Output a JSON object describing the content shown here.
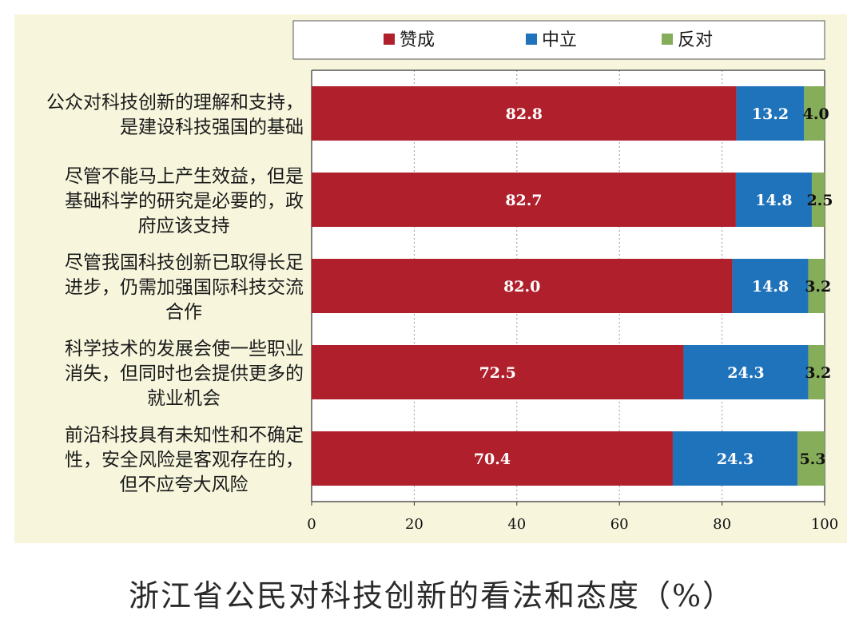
{
  "caption": "浙江省公民对科技创新的看法和态度（%）",
  "colors": {
    "panel_bg": "#f7f6dd",
    "plot_bg": "#ffffff"
  },
  "chart_data": {
    "type": "bar",
    "orientation": "horizontal",
    "stacked": true,
    "categories": [
      [
        "公众对科技创新的理解和支持，",
        "是建设科技强国的基础"
      ],
      [
        "尽管不能马上产生效益，但是",
        "基础科学的研究是必要的，政",
        "府应该支持"
      ],
      [
        "尽管我国科技创新已取得长足",
        "进步，仍需加强国际科技交流",
        "合作"
      ],
      [
        "科学技术的发展会使一些职业",
        "消失，但同时也会提供更多的",
        "就业机会"
      ],
      [
        "前沿科技具有未知性和不确定",
        "性，安全风险是客观存在的，",
        "但不应夸大风险"
      ]
    ],
    "series": [
      {
        "name": "赞成",
        "color": "#b0202c",
        "values": [
          82.8,
          82.7,
          82.0,
          72.5,
          70.4
        ]
      },
      {
        "name": "中立",
        "color": "#1f73bb",
        "values": [
          13.2,
          14.8,
          14.8,
          24.3,
          24.3
        ]
      },
      {
        "name": "反对",
        "color": "#86ad5a",
        "values": [
          4.0,
          2.5,
          3.2,
          3.2,
          5.3
        ]
      }
    ],
    "xlim": [
      0,
      100
    ],
    "xticks": [
      0,
      20,
      40,
      60,
      80,
      100
    ],
    "grid": "vertical dashed",
    "legend": "top"
  }
}
